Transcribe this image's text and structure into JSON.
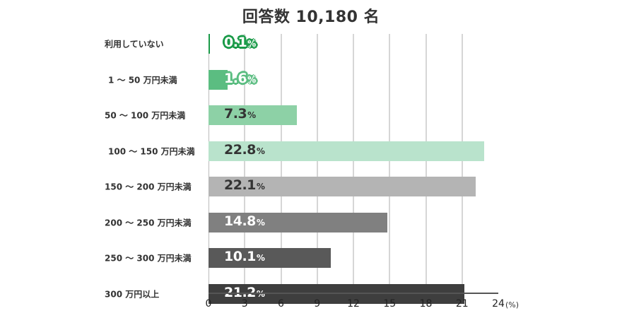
{
  "header": {
    "title": "回答数 10,180 名"
  },
  "chart_data": {
    "type": "bar",
    "orientation": "horizontal",
    "title": "回答数 10,180 名",
    "xlabel": "",
    "ylabel": "",
    "unit": "(%)",
    "xlim": [
      0,
      24
    ],
    "xticks": [
      0,
      3,
      6,
      9,
      12,
      15,
      18,
      21,
      24
    ],
    "grid": true,
    "legend": null,
    "categories": [
      "利用していない",
      "1 ～ 50 万円未満",
      "50 ～ 100 万円未満",
      "100 ～ 150 万円未満",
      "150 ～ 200 万円未満",
      "200 ～ 250 万円未満",
      "250 ～ 300 万円未満",
      "300 万円以上"
    ],
    "values": [
      0.1,
      1.6,
      7.3,
      22.8,
      22.1,
      14.8,
      10.1,
      21.2
    ],
    "labels": [
      "0.1",
      "1.6",
      "7.3",
      "22.8",
      "22.1",
      "14.8",
      "10.1",
      "21.2"
    ],
    "colors": [
      "#1a9a48",
      "#5bbd81",
      "#8dd1a6",
      "#b9e3cc",
      "#b4b4b4",
      "#808080",
      "#595959",
      "#3e3e3e"
    ],
    "label_colors": [
      "#ffffff",
      "#ffffff",
      "#333333",
      "#333333",
      "#333333",
      "#ffffff",
      "#ffffff",
      "#ffffff"
    ]
  },
  "axis": {
    "unit_label": "(%)",
    "percent_sign": "%"
  }
}
